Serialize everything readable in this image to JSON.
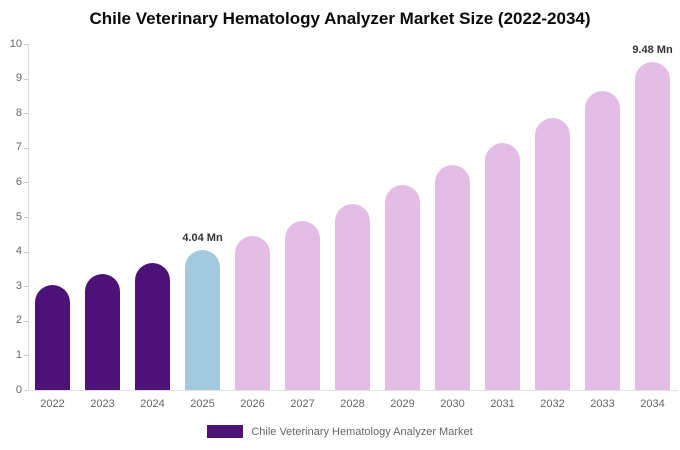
{
  "chart_data": {
    "type": "bar",
    "title": "Chile Veterinary Hematology Analyzer Market Size (2022-2034)",
    "unit": "Mn",
    "categories": [
      "2022",
      "2023",
      "2024",
      "2025",
      "2026",
      "2027",
      "2028",
      "2029",
      "2030",
      "2031",
      "2032",
      "2033",
      "2034"
    ],
    "values": [
      3.04,
      3.34,
      3.67,
      4.04,
      4.44,
      4.88,
      5.38,
      5.92,
      6.5,
      7.14,
      7.85,
      8.63,
      9.48
    ],
    "value_labels": [
      "",
      "",
      "",
      "4.04 Mn",
      "",
      "",
      "",
      "",
      "",
      "",
      "",
      "",
      "9.48 Mn"
    ],
    "roles": [
      "historical",
      "historical",
      "historical",
      "highlight",
      "forecast",
      "forecast",
      "forecast",
      "forecast",
      "forecast",
      "forecast",
      "forecast",
      "forecast",
      "forecast"
    ],
    "colors": {
      "historical": "#4C1277",
      "highlight": "#A2C9DE",
      "forecast": "#E4BDE6"
    },
    "axis_color": "#d9d9d9",
    "tick_text_color": "#666666",
    "xlabel": "",
    "ylabel": "",
    "ylim": [
      0,
      10
    ],
    "y_ticks": [
      0,
      1,
      2,
      3,
      4,
      5,
      6,
      7,
      8,
      9,
      10
    ],
    "grid": false,
    "legend_position": "bottom-center",
    "legend": [
      {
        "label": "Chile Veterinary Hematology Analyzer Market",
        "color": "#4C1277"
      }
    ]
  }
}
